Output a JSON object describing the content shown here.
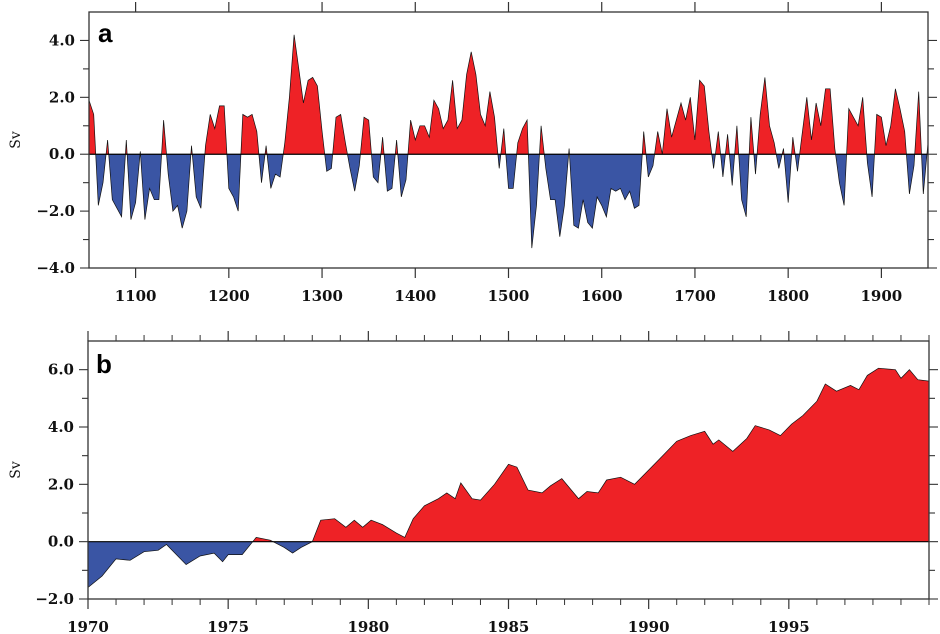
{
  "colors": {
    "positive": "#ee2226",
    "negative": "#3a55a4",
    "outline": "#111111"
  },
  "chart_data": [
    {
      "type": "area",
      "panel_label": "a",
      "ylabel": "Sv",
      "xlabel": "",
      "xlim": [
        1050,
        1950
      ],
      "ylim": [
        -4,
        5
      ],
      "x_ticks": [
        1100,
        1200,
        1300,
        1400,
        1500,
        1600,
        1700,
        1800,
        1900
      ],
      "x_tick_labels": [
        "1100",
        "1200",
        "1300",
        "1400",
        "1500",
        "1600",
        "1700",
        "1800",
        "1900"
      ],
      "y_ticks": [
        4,
        2,
        0,
        -2,
        -4
      ],
      "y_tick_labels": [
        "4.0",
        "2.0",
        "0.0",
        "−2.0",
        "−4.0"
      ],
      "x_step": 5,
      "values": [
        1.9,
        1.4,
        -1.8,
        -1.0,
        0.5,
        -1.6,
        -1.9,
        -2.2,
        0.5,
        -2.3,
        -1.7,
        0.1,
        -2.3,
        -1.2,
        -1.6,
        -1.6,
        1.2,
        -0.7,
        -2.0,
        -1.8,
        -2.6,
        -2.0,
        0.3,
        -1.5,
        -1.9,
        0.3,
        1.4,
        0.9,
        1.7,
        1.7,
        -1.2,
        -1.5,
        -2.0,
        1.4,
        1.3,
        1.4,
        0.8,
        -1.0,
        0.3,
        -1.2,
        -0.7,
        -0.8,
        0.4,
        2.0,
        4.2,
        3.0,
        1.8,
        2.6,
        2.7,
        2.4,
        0.8,
        -0.6,
        -0.5,
        1.3,
        1.4,
        0.4,
        -0.5,
        -1.3,
        -0.4,
        1.3,
        1.2,
        -0.8,
        -1.0,
        0.6,
        -1.3,
        -1.2,
        0.5,
        -1.5,
        -0.9,
        1.2,
        0.5,
        1.0,
        1.0,
        0.6,
        1.9,
        1.6,
        0.9,
        1.2,
        2.6,
        0.9,
        1.2,
        2.8,
        3.6,
        2.8,
        1.4,
        1.0,
        2.2,
        1.3,
        -0.5,
        0.9,
        -1.2,
        -1.2,
        0.4,
        0.9,
        1.2,
        -3.3,
        -1.8,
        1.0,
        -0.5,
        -1.6,
        -1.6,
        -2.9,
        -1.8,
        0.2,
        -2.5,
        -2.6,
        -1.6,
        -2.4,
        -2.6,
        -1.5,
        -1.8,
        -2.2,
        -1.2,
        -1.3,
        -1.2,
        -1.6,
        -1.3,
        -1.9,
        -1.8,
        0.8,
        -0.8,
        -0.4,
        0.8,
        0.0,
        1.6,
        0.6,
        1.2,
        1.8,
        1.2,
        2.0,
        0.5,
        2.6,
        2.4,
        0.8,
        -0.5,
        0.8,
        -0.8,
        0.7,
        -1.1,
        1.0,
        -1.6,
        -2.2,
        1.3,
        -0.7,
        1.4,
        2.7,
        1.0,
        0.4,
        -0.5,
        0.2,
        -1.7,
        0.6,
        -0.6,
        0.7,
        2.0,
        0.5,
        1.8,
        1.0,
        2.3,
        2.3,
        0.2,
        -1.0,
        -1.8,
        1.6,
        1.3,
        1.0,
        2.0,
        -0.3,
        -1.5,
        1.4,
        1.3,
        0.3,
        1.0,
        2.3,
        1.6,
        0.8,
        -1.4,
        -0.4,
        2.2,
        -1.4,
        0.4
      ]
    },
    {
      "type": "area",
      "panel_label": "b",
      "ylabel": "Sv",
      "xlabel": "",
      "xlim": [
        1970,
        2000
      ],
      "ylim": [
        -2,
        7
      ],
      "x_ticks": [
        1970,
        1975,
        1980,
        1985,
        1990,
        1995
      ],
      "x_tick_labels": [
        "1970",
        "1975",
        "1980",
        "1985",
        "1990",
        "1995"
      ],
      "y_ticks": [
        6,
        4,
        2,
        0,
        -2
      ],
      "y_tick_labels": [
        "6.0",
        "4.0",
        "2.0",
        "0.0",
        "−2.0"
      ],
      "x": [
        1970.0,
        1970.5,
        1971.0,
        1971.5,
        1972.0,
        1972.5,
        1972.8,
        1973.0,
        1973.5,
        1974.0,
        1974.5,
        1974.8,
        1975.0,
        1975.5,
        1976.0,
        1976.5,
        1977.0,
        1977.3,
        1977.6,
        1978.0,
        1978.3,
        1978.8,
        1979.2,
        1979.5,
        1979.8,
        1980.1,
        1980.5,
        1981.0,
        1981.3,
        1981.6,
        1982.0,
        1982.5,
        1982.8,
        1983.1,
        1983.3,
        1983.7,
        1984.0,
        1984.5,
        1985.0,
        1985.3,
        1985.7,
        1986.2,
        1986.5,
        1986.9,
        1987.5,
        1987.8,
        1988.2,
        1988.5,
        1989.0,
        1989.5,
        1990.0,
        1990.5,
        1991.0,
        1991.5,
        1992.0,
        1992.3,
        1992.5,
        1993.0,
        1993.5,
        1993.8,
        1994.3,
        1994.7,
        1995.1,
        1995.5,
        1996.0,
        1996.3,
        1996.7,
        1997.2,
        1997.5,
        1997.8,
        1998.2,
        1998.8,
        1999.0,
        1999.3,
        1999.6,
        2000.0
      ],
      "values": [
        -1.6,
        -1.2,
        -0.6,
        -0.65,
        -0.35,
        -0.3,
        -0.1,
        -0.3,
        -0.8,
        -0.5,
        -0.4,
        -0.7,
        -0.45,
        -0.45,
        0.15,
        0.05,
        -0.2,
        -0.4,
        -0.2,
        0.0,
        0.75,
        0.8,
        0.5,
        0.75,
        0.5,
        0.75,
        0.6,
        0.3,
        0.15,
        0.8,
        1.25,
        1.5,
        1.7,
        1.5,
        2.05,
        1.5,
        1.45,
        2.0,
        2.7,
        2.6,
        1.8,
        1.7,
        1.95,
        2.2,
        1.5,
        1.75,
        1.7,
        2.15,
        2.25,
        2.0,
        2.5,
        3.0,
        3.5,
        3.7,
        3.85,
        3.4,
        3.55,
        3.15,
        3.6,
        4.05,
        3.9,
        3.7,
        4.1,
        4.4,
        4.9,
        5.5,
        5.25,
        5.45,
        5.3,
        5.8,
        6.05,
        6.0,
        5.7,
        6.0,
        5.65,
        5.6
      ]
    }
  ]
}
